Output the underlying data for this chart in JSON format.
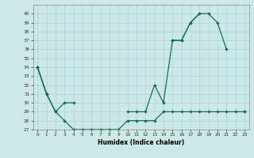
{
  "xlabel": "Humidex (Indice chaleur)",
  "line_color": "#1a6b5a",
  "bg_color": "#cce8e8",
  "grid_color": "#aad4d4",
  "ylim": [
    27,
    41
  ],
  "xlim": [
    -0.5,
    23.5
  ],
  "yticks": [
    27,
    28,
    29,
    30,
    31,
    32,
    33,
    34,
    35,
    36,
    37,
    38,
    39,
    40
  ],
  "xticks": [
    0,
    1,
    2,
    3,
    4,
    5,
    6,
    7,
    8,
    9,
    10,
    11,
    12,
    13,
    14,
    15,
    16,
    17,
    18,
    19,
    20,
    21,
    22,
    23
  ],
  "curve_upper": [
    34,
    31,
    null,
    null,
    null,
    null,
    null,
    null,
    null,
    null,
    null,
    null,
    null,
    null,
    null,
    37,
    37,
    39,
    40,
    40,
    39,
    36,
    null,
    29
  ],
  "curve_mid": [
    34,
    31,
    29,
    30,
    30,
    null,
    null,
    null,
    null,
    null,
    29,
    29,
    29,
    32,
    30,
    37,
    37,
    39,
    40,
    null,
    null,
    null,
    null,
    null
  ],
  "curve_lower": [
    34,
    31,
    29,
    28,
    27,
    27,
    27,
    27,
    27,
    27,
    28,
    28,
    28,
    28,
    29,
    29,
    29,
    29,
    29,
    29,
    29,
    29,
    29,
    29
  ]
}
